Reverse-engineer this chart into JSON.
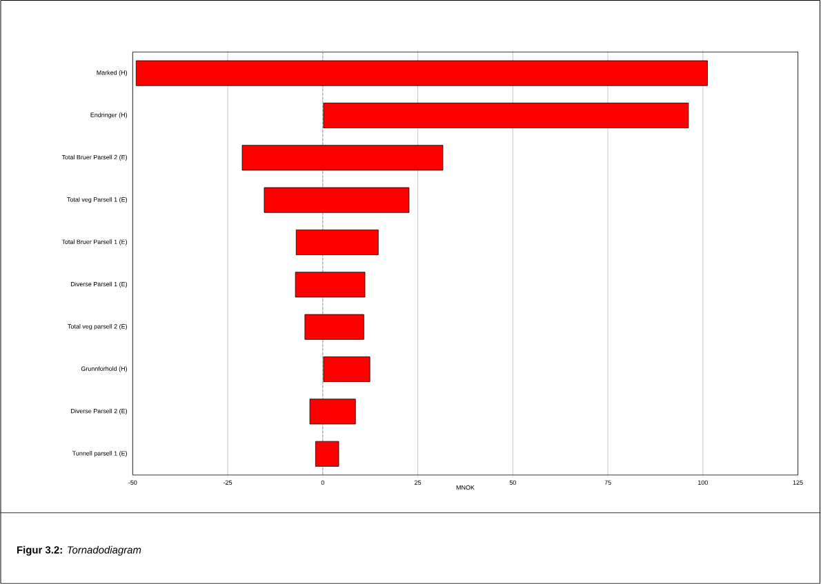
{
  "chart_data": {
    "type": "bar",
    "orientation": "horizontal",
    "title": "**Figur 3.2:**     *Tornadodiagram*",
    "xlabel": "MNOK",
    "categories": [
      "Marked (H)",
      "Endringer (H)",
      "Total Bruer Parsell 2 (E)",
      "Total veg Parsell 1 (E)",
      "Total Bruer Parsell 1 (E)",
      "Diverse Parsell 1 (E)",
      "Total veg parsell 2 (E)",
      "Grunnforhold (H)",
      "Diverse Parsell 2 (E)",
      "Tunnell parsell 1 (E)"
    ],
    "base": [
      -49.1,
      0.2,
      -21.2,
      -15.4,
      -7.0,
      -7.2,
      -4.7,
      0.2,
      -3.4,
      -1.9
    ],
    "values": [
      150.3,
      96.0,
      52.8,
      38.1,
      21.6,
      18.3,
      15.5,
      12.2,
      12.0,
      6.1
    ],
    "color": "#ff0000",
    "xlim": [
      -50,
      125
    ],
    "xticks": [
      -50,
      -25,
      0,
      25,
      50,
      75,
      100,
      125
    ],
    "grid": "x",
    "ref_lines": [
      {
        "axis": "x",
        "value": 0,
        "color": "#a0a0a0",
        "line_style": "dashed"
      }
    ]
  }
}
